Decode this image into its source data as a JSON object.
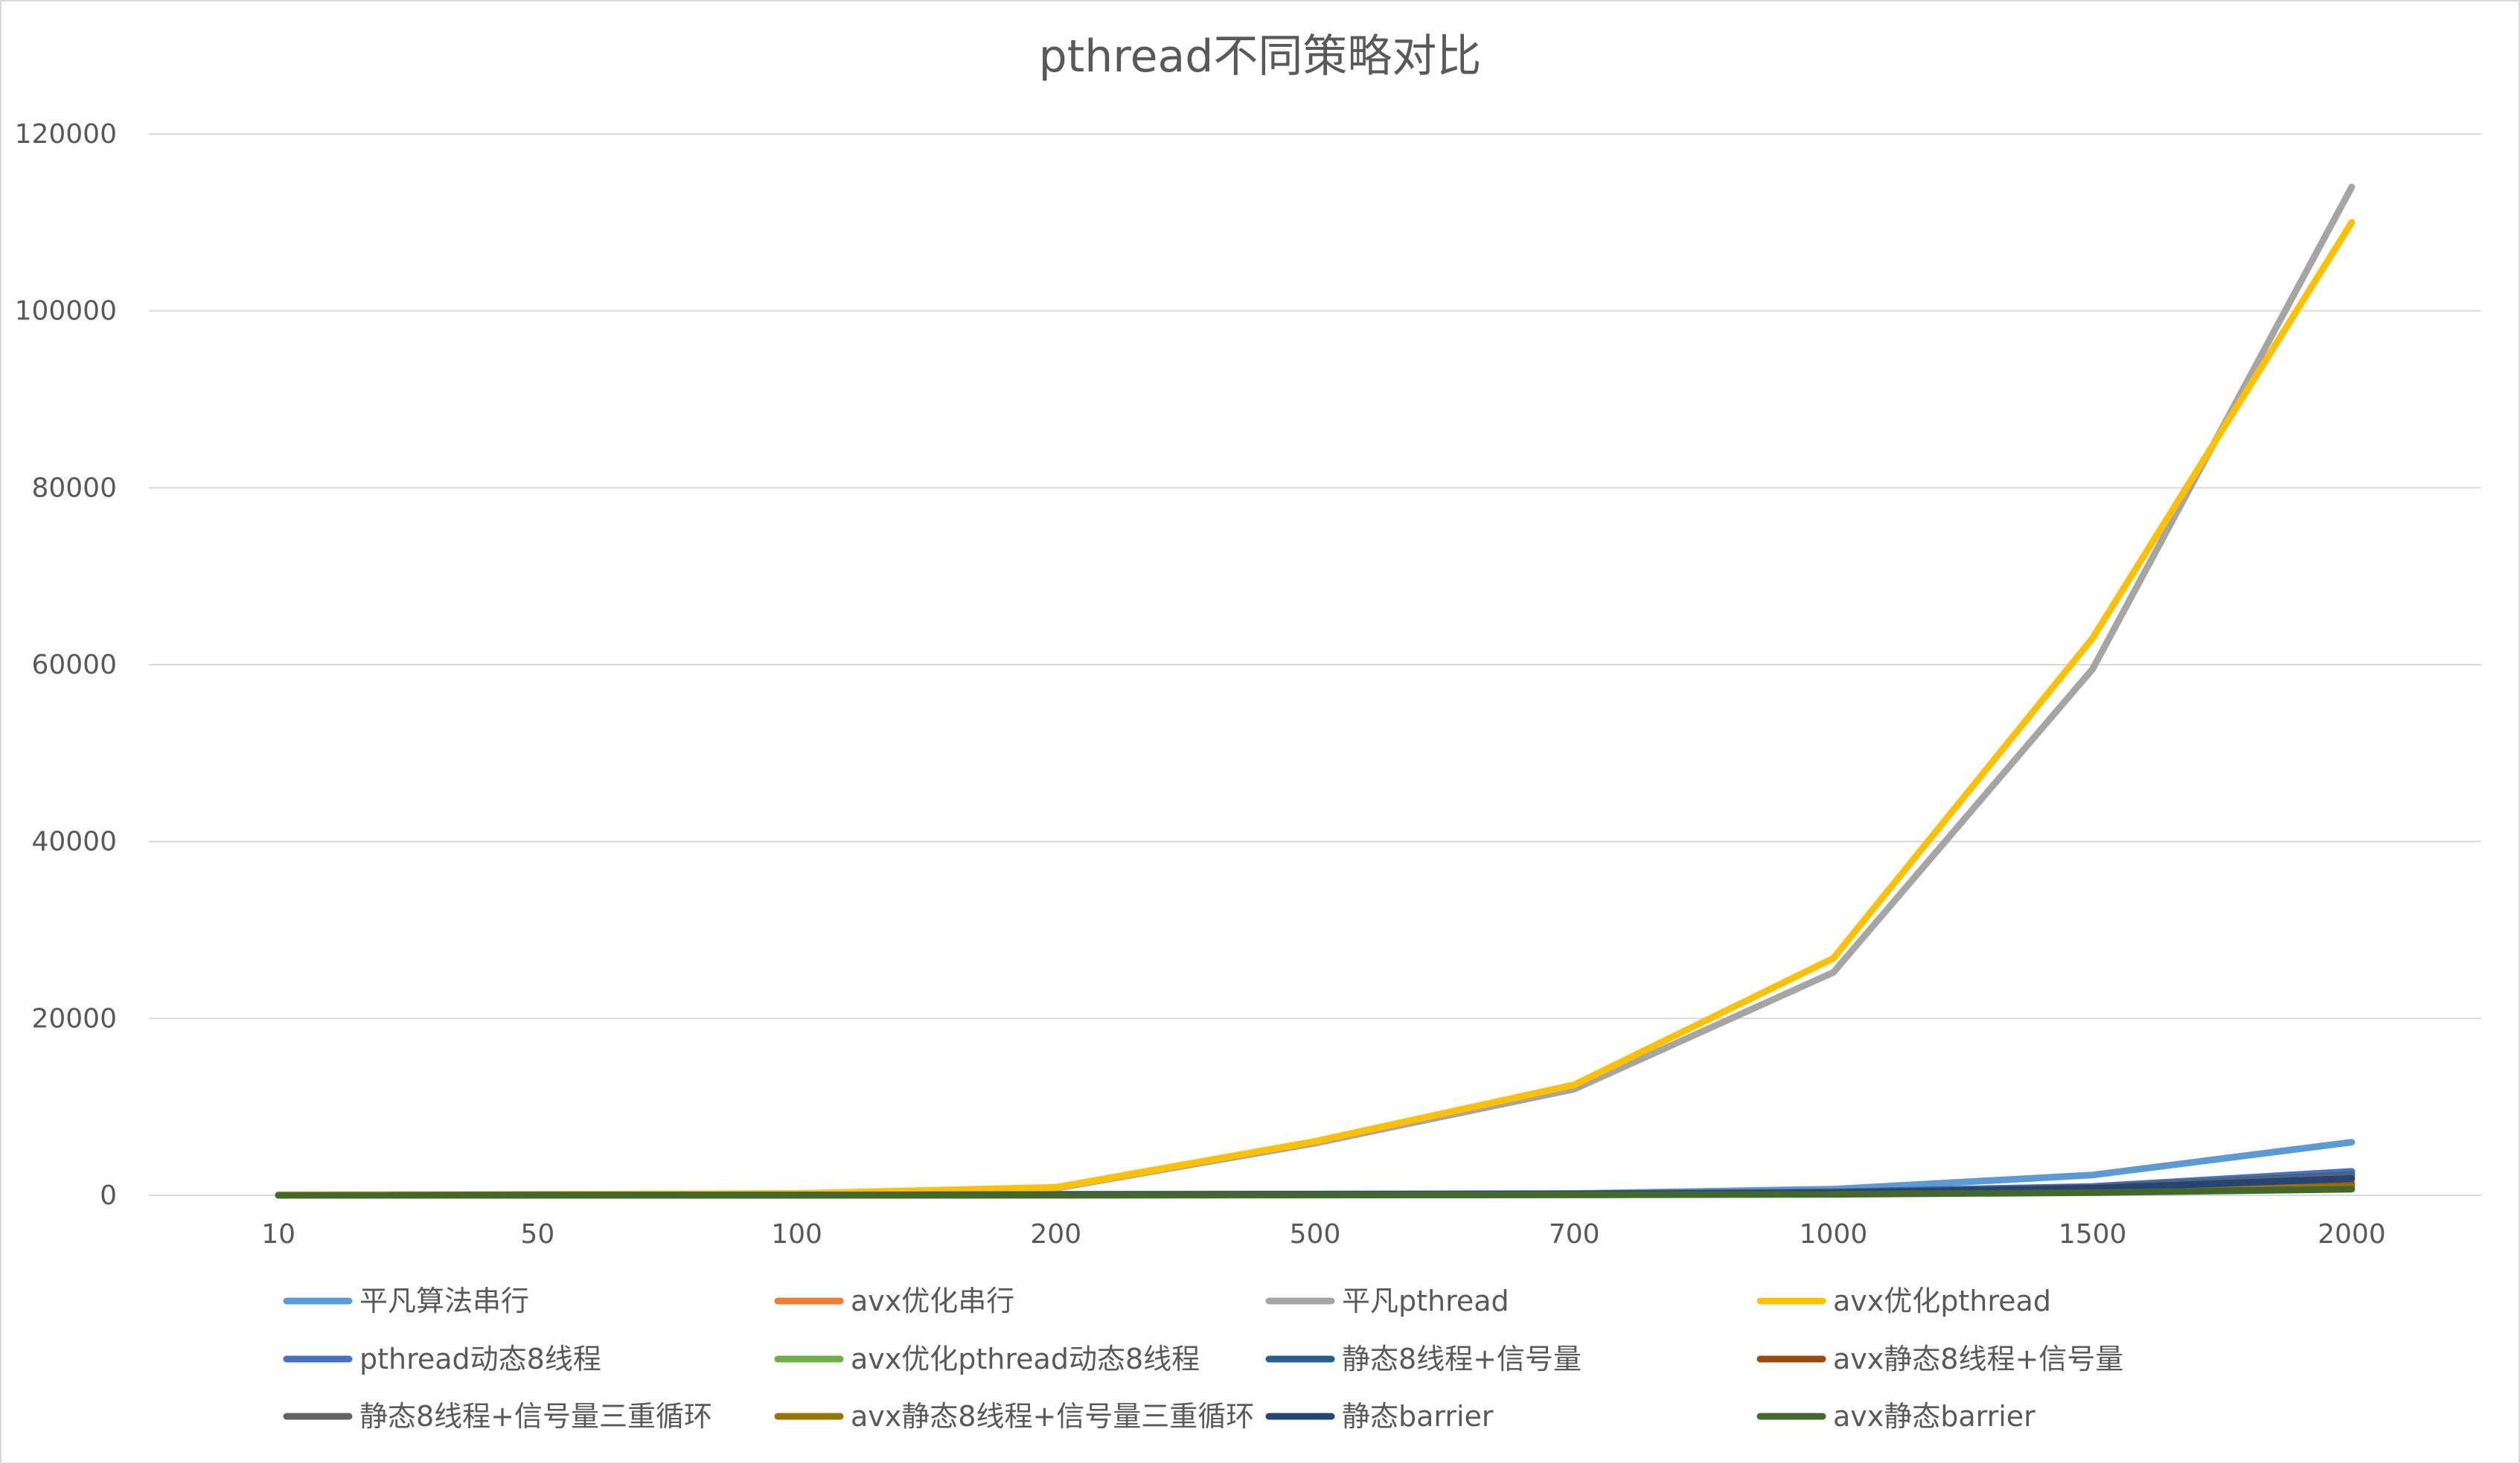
{
  "chart_data": {
    "type": "line",
    "title": "pthread不同策略对比",
    "xlabel": "",
    "ylabel": "",
    "categories": [
      "10",
      "50",
      "100",
      "200",
      "500",
      "700",
      "1000",
      "1500",
      "2000"
    ],
    "ylim": [
      0,
      120000
    ],
    "yticks": [
      0,
      20000,
      40000,
      60000,
      80000,
      100000,
      120000
    ],
    "grid": true,
    "legend_position": "bottom",
    "series": [
      {
        "name": "平凡算法串行",
        "color": "#5B9BD5",
        "values": [
          0.5,
          10,
          40,
          130,
          150,
          200,
          700,
          2300,
          6000
        ]
      },
      {
        "name": "avx优化串行",
        "color": "#ED7D31",
        "values": [
          0.2,
          5,
          15,
          50,
          70,
          100,
          300,
          900,
          2500
        ]
      },
      {
        "name": "平凡pthread",
        "color": "#A5A5A5",
        "values": [
          50,
          100,
          200,
          800,
          5900,
          12000,
          25200,
          59500,
          114000
        ]
      },
      {
        "name": "avx优化pthread",
        "color": "#FFC000",
        "values": [
          50,
          100,
          200,
          900,
          6100,
          12500,
          26800,
          63000,
          110000
        ]
      },
      {
        "name": "pthread动态8线程",
        "color": "#4472C4",
        "values": [
          1,
          10,
          30,
          80,
          120,
          180,
          400,
          1000,
          2700
        ]
      },
      {
        "name": "avx优化pthread动态8线程",
        "color": "#70AD47",
        "values": [
          1,
          5,
          15,
          40,
          60,
          90,
          200,
          500,
          1500
        ]
      },
      {
        "name": "静态8线程+信号量",
        "color": "#255E91",
        "values": [
          1,
          8,
          25,
          70,
          100,
          150,
          350,
          900,
          2300
        ]
      },
      {
        "name": "avx静态8线程+信号量",
        "color": "#9E480E",
        "values": [
          1,
          5,
          12,
          30,
          50,
          80,
          180,
          450,
          1200
        ]
      },
      {
        "name": "静态8线程+信号量三重循环",
        "color": "#636363",
        "values": [
          1,
          8,
          25,
          70,
          100,
          150,
          350,
          900,
          2200
        ]
      },
      {
        "name": "avx静态8线程+信号量三重循环",
        "color": "#997300",
        "values": [
          1,
          5,
          10,
          25,
          40,
          70,
          150,
          400,
          1000
        ]
      },
      {
        "name": "静态barrier",
        "color": "#264478",
        "values": [
          1,
          7,
          20,
          60,
          90,
          130,
          300,
          800,
          1900
        ]
      },
      {
        "name": "avx静态barrier",
        "color": "#43682B",
        "values": [
          1,
          4,
          10,
          20,
          35,
          60,
          120,
          300,
          700
        ]
      }
    ]
  }
}
